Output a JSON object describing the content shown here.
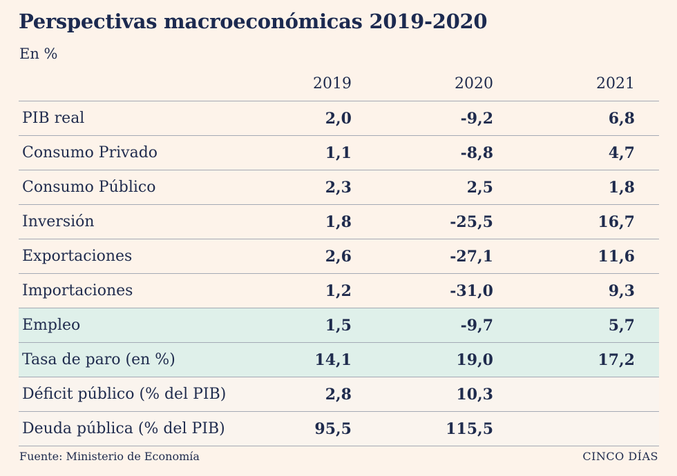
{
  "title": "Perspectivas macroeconómicas 2019-2020",
  "unit": "En %",
  "table": {
    "columns": [
      "2019",
      "2020",
      "2021"
    ],
    "rows": [
      {
        "label": "PIB real",
        "values": [
          "2,0",
          "-9,2",
          "6,8"
        ]
      },
      {
        "label": "Consumo Privado",
        "values": [
          "1,1",
          "-8,8",
          "4,7"
        ]
      },
      {
        "label": "Consumo Público",
        "values": [
          "2,3",
          "2,5",
          "1,8"
        ]
      },
      {
        "label": "Inversión",
        "values": [
          "1,8",
          "-25,5",
          "16,7"
        ]
      },
      {
        "label": "Exportaciones",
        "values": [
          "2,6",
          "-27,1",
          "11,6"
        ]
      },
      {
        "label": "Importaciones",
        "values": [
          "1,2",
          "-31,0",
          "9,3"
        ]
      },
      {
        "label": "Empleo",
        "values": [
          "1,5",
          "-9,7",
          "5,7"
        ]
      },
      {
        "label": "Tasa de paro (en %)",
        "values": [
          "14,1",
          "19,0",
          "17,2"
        ]
      },
      {
        "label": "Déficit público (% del PIB)",
        "values": [
          "2,8",
          "10,3",
          ""
        ]
      },
      {
        "label": "Deuda pública (% del PIB)",
        "values": [
          "95,5",
          "115,5",
          ""
        ]
      }
    ]
  },
  "footer": {
    "source": "Fuente: Ministerio de Economía",
    "brand": "CINCO DÍAS"
  },
  "colors": {
    "background": "#fdf3ea",
    "highlight_row": "#dff0ea",
    "text": "#1f2b4d"
  }
}
